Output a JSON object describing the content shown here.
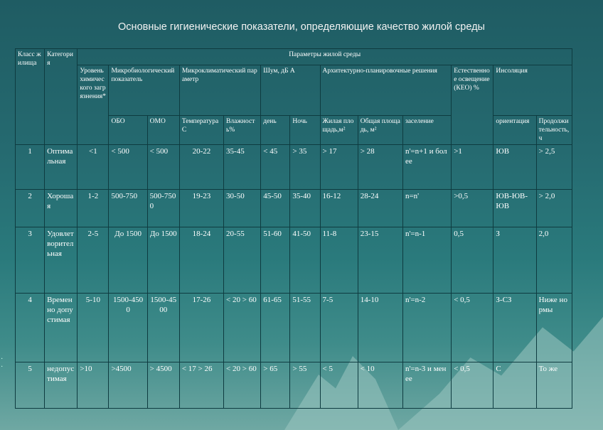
{
  "title": "Основные гигиенические показатели, определяющие качество жилой среды",
  "headers": {
    "klass": "Класс жилища",
    "kategoria": "Категория",
    "params": "Параметры жилой среды",
    "uroven": "Уровень химического загрязнения*",
    "micro": "Микробиологический показатель",
    "obo": "ОБО",
    "omo": "ОМО",
    "microclimate": "Микроклиматический параметр",
    "temp": "Температура С",
    "humid": "Влажность%",
    "noise": "Шум, дБ А",
    "day": "день",
    "night": "Ночь",
    "arch": "Архитектурно-планировочные решения",
    "living_area": "Жилая площадь,м²",
    "total_area": "Общая площадь, м²",
    "settle": "заселение",
    "natural_light": "Естественное освещение (КЕО) %",
    "insol": "Инсоляция",
    "orient": "ориентация",
    "duration": "Продолжительность,ч"
  },
  "rows": [
    {
      "klass": "1",
      "cat": "Оптимальная",
      "level": "<1",
      "obo": "< 500",
      "omo": "< 500",
      "temp": "20-22",
      "hum": "35-45",
      "day": "< 45",
      "night": "> 35",
      "living": "> 17",
      "total": "> 28",
      "settle": "n'=n+1 и более",
      "keo": ">1",
      "orient": "ЮВ",
      "dur": "> 2,5"
    },
    {
      "klass": "2",
      "cat": "Хорошая",
      "level": "1-2",
      "obo": "500-750",
      "omo": "500-7500",
      "temp": "19-23",
      "hum": "30-50",
      "day": "45-50",
      "night": "35-40",
      "living": "16-12",
      "total": "28-24",
      "settle": "n=n'",
      "keo": ">0,5",
      "orient": "ЮВ-ЮВ-ЮВ",
      "dur": "> 2,0"
    },
    {
      "klass": "3",
      "cat": "Удовлетворительная",
      "level": "2-5",
      "obo": "До 1500",
      "omo": "До 1500",
      "temp": "18-24",
      "hum": "20-55",
      "day": "51-60",
      "night": "41-50",
      "living": "11-8",
      "total": "23-15",
      "settle": "n'=n-1",
      "keo": "0,5",
      "orient": "З",
      "dur": "2,0"
    },
    {
      "klass": "4",
      "cat": "Временно допустимая",
      "level": "5-10",
      "obo": "1500-4500",
      "omo": "1500-4500",
      "temp": "17-26",
      "hum": "< 20 > 60",
      "day": "61-65",
      "night": "51-55",
      "living": "7-5",
      "total": "14-10",
      "settle": "n'=n-2",
      "keo": "< 0,5",
      "orient": "З-СЗ",
      "dur": "Ниже нормы"
    },
    {
      "klass": "5",
      "cat": "недопустимая",
      "level": ">10",
      "obo": ">4500",
      "omo": "> 4500",
      "temp": "< 17 > 26",
      "hum": "< 20 > 60",
      "day": "> 65",
      "night": "> 55",
      "living": "< 5",
      "total": "< 10",
      "settle": "n'=n-3 и менее",
      "keo": "< 0,5",
      "orient": "С",
      "dur": "То же"
    }
  ]
}
